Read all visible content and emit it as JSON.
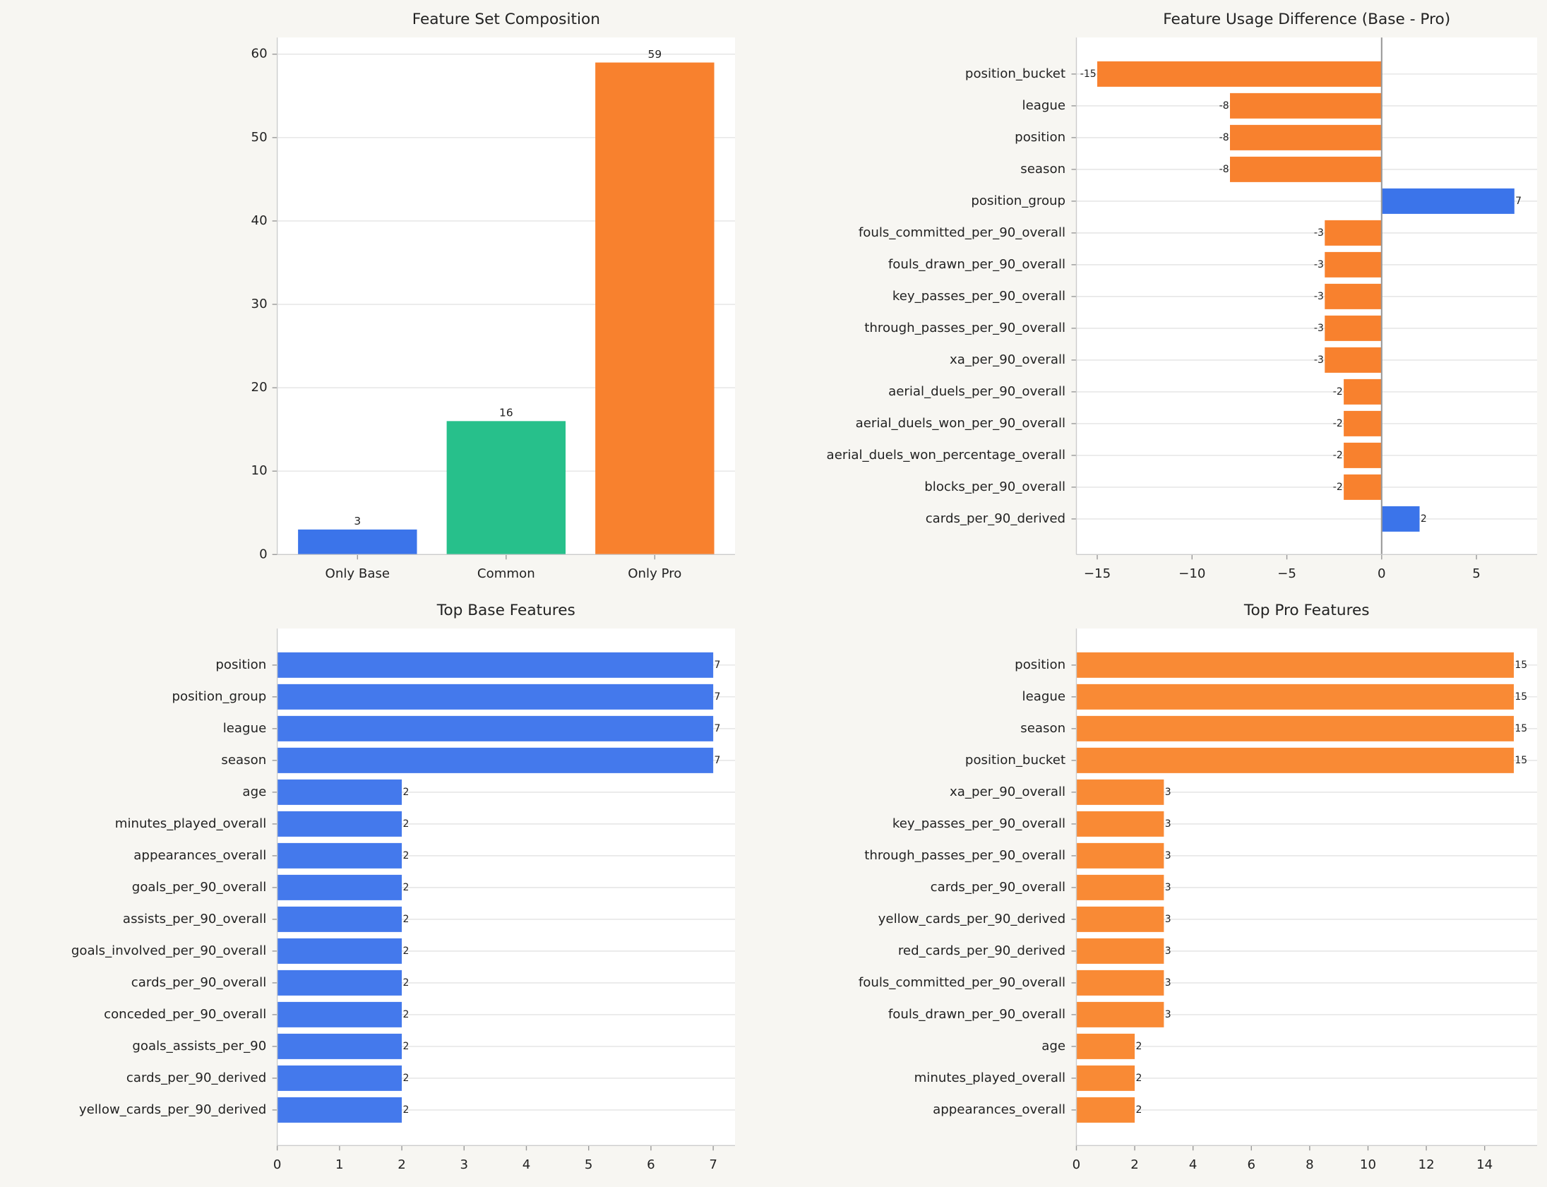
{
  "chart_data": [
    {
      "type": "bar",
      "title": "Feature Set Composition",
      "categories": [
        "Only Base",
        "Common",
        "Only Pro"
      ],
      "values": [
        3,
        16,
        59
      ],
      "colors": [
        "#3b74ea",
        "#27c08b",
        "#f8812e"
      ],
      "ylim": [
        0,
        62
      ],
      "yticks": [
        0,
        10,
        20,
        30,
        40,
        50,
        60
      ],
      "grid": true
    },
    {
      "type": "barh",
      "title": "Feature Usage Difference (Base - Pro)",
      "categories": [
        "position_bucket",
        "league",
        "position",
        "season",
        "position_group",
        "fouls_committed_per_90_overall",
        "fouls_drawn_per_90_overall",
        "key_passes_per_90_overall",
        "through_passes_per_90_overall",
        "xa_per_90_overall",
        "aerial_duels_per_90_overall",
        "aerial_duels_won_per_90_overall",
        "aerial_duels_won_percentage_overall",
        "blocks_per_90_overall",
        "cards_per_90_derived"
      ],
      "values": [
        -15,
        -8,
        -8,
        -8,
        7,
        -3,
        -3,
        -3,
        -3,
        -3,
        -2,
        -2,
        -2,
        -2,
        2
      ],
      "positive_color": "#3b74ea",
      "negative_color": "#f8812e",
      "xlim": [
        -16.1,
        8.2
      ],
      "xticks": [
        {
          "value": -15,
          "label": "−15"
        },
        {
          "value": -10,
          "label": "−10"
        },
        {
          "value": -5,
          "label": "−5"
        },
        0,
        5
      ],
      "zero_line": true,
      "grid": true
    },
    {
      "type": "barh",
      "title": "Top Base Features",
      "categories": [
        "position",
        "position_group",
        "league",
        "season",
        "age",
        "minutes_played_overall",
        "appearances_overall",
        "goals_per_90_overall",
        "assists_per_90_overall",
        "goals_involved_per_90_overall",
        "cards_per_90_overall",
        "conceded_per_90_overall",
        "goals_assists_per_90",
        "cards_per_90_derived",
        "yellow_cards_per_90_derived"
      ],
      "values": [
        7,
        7,
        7,
        7,
        2,
        2,
        2,
        2,
        2,
        2,
        2,
        2,
        2,
        2,
        2
      ],
      "color": "#4479ec",
      "xlim": [
        0,
        7.35
      ],
      "xticks": [
        0,
        1,
        2,
        3,
        4,
        5,
        6,
        7
      ],
      "grid": true
    },
    {
      "type": "barh",
      "title": "Top Pro Features",
      "categories": [
        "position",
        "league",
        "season",
        "position_bucket",
        "xa_per_90_overall",
        "key_passes_per_90_overall",
        "through_passes_per_90_overall",
        "cards_per_90_overall",
        "yellow_cards_per_90_derived",
        "red_cards_per_90_derived",
        "fouls_committed_per_90_overall",
        "fouls_drawn_per_90_overall",
        "age",
        "minutes_played_overall",
        "appearances_overall"
      ],
      "values": [
        15,
        15,
        15,
        15,
        3,
        3,
        3,
        3,
        3,
        3,
        3,
        3,
        2,
        2,
        2
      ],
      "color": "#f98a35",
      "xlim": [
        0,
        15.8
      ],
      "xticks": [
        0,
        2,
        4,
        6,
        8,
        10,
        12,
        14
      ],
      "grid": true
    }
  ]
}
